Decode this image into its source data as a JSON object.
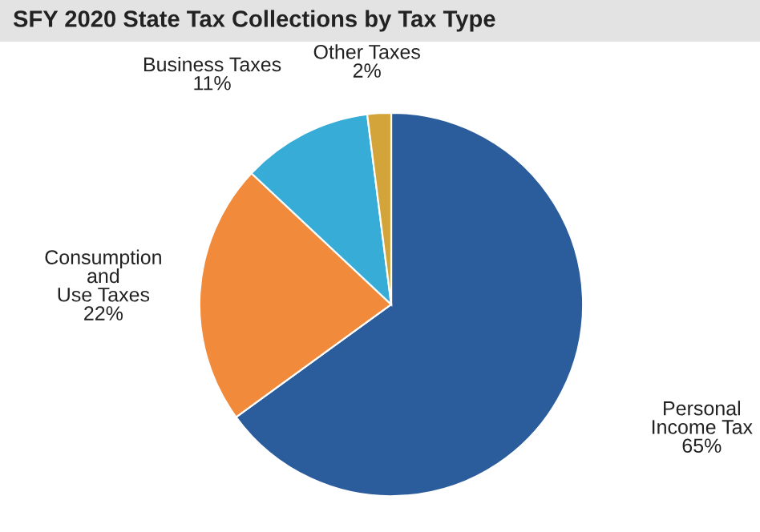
{
  "chart_data": {
    "type": "pie",
    "title": "SFY 2020 State Tax Collections by Tax Type",
    "categories": [
      "Personal\nIncome Tax",
      "Consumption\nand\nUse Taxes",
      "Business Taxes",
      "Other Taxes"
    ],
    "values": [
      65,
      22,
      11,
      2
    ],
    "value_labels": [
      "65%",
      "22%",
      "11%",
      "2%"
    ],
    "colors": [
      "#2b5c9c",
      "#f28a3c",
      "#36acd6",
      "#d2a43a"
    ]
  }
}
